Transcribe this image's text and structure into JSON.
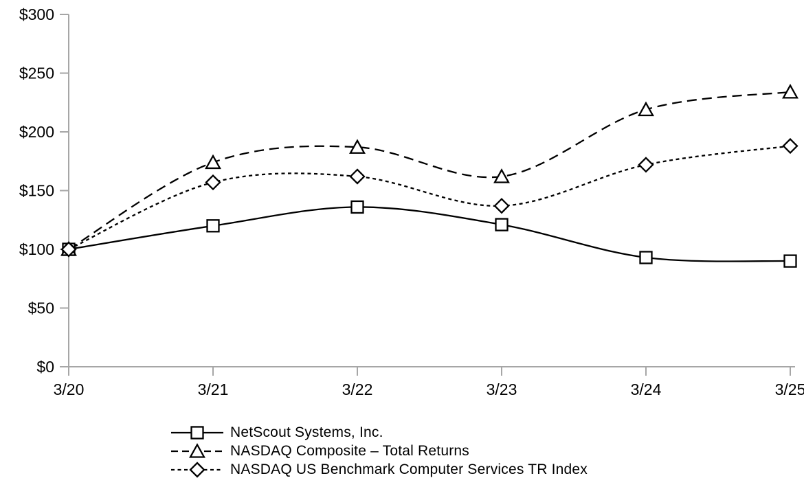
{
  "chart_data": {
    "type": "line",
    "title": "",
    "xlabel": "",
    "ylabel": "",
    "categories": [
      "3/20",
      "3/21",
      "3/22",
      "3/23",
      "3/24",
      "3/25"
    ],
    "series": [
      {
        "name": "NetScout Systems, Inc.",
        "marker": "square",
        "line_style": "solid",
        "values": [
          100,
          120,
          136,
          121,
          93,
          90
        ]
      },
      {
        "name": "NASDAQ Composite – Total Returns",
        "marker": "triangle",
        "line_style": "dashed",
        "values": [
          100,
          174,
          187,
          162,
          219,
          234
        ]
      },
      {
        "name": "NASDAQ US Benchmark Computer Services TR Index",
        "marker": "diamond",
        "line_style": "short-dash",
        "values": [
          100,
          157,
          162,
          137,
          172,
          188
        ]
      }
    ],
    "y_tick_labels": [
      "$0",
      "$50",
      "$100",
      "$150",
      "$200",
      "$250",
      "$300"
    ],
    "y_tick_values": [
      0,
      50,
      100,
      150,
      200,
      250,
      300
    ],
    "ylim": [
      0,
      300
    ],
    "grid": false,
    "legend_position": "bottom-left",
    "colors": {
      "line": "#000000",
      "axis": "#a6a6a6",
      "text": "#000000",
      "marker_fill": "#ffffff",
      "background": "#ffffff"
    }
  }
}
